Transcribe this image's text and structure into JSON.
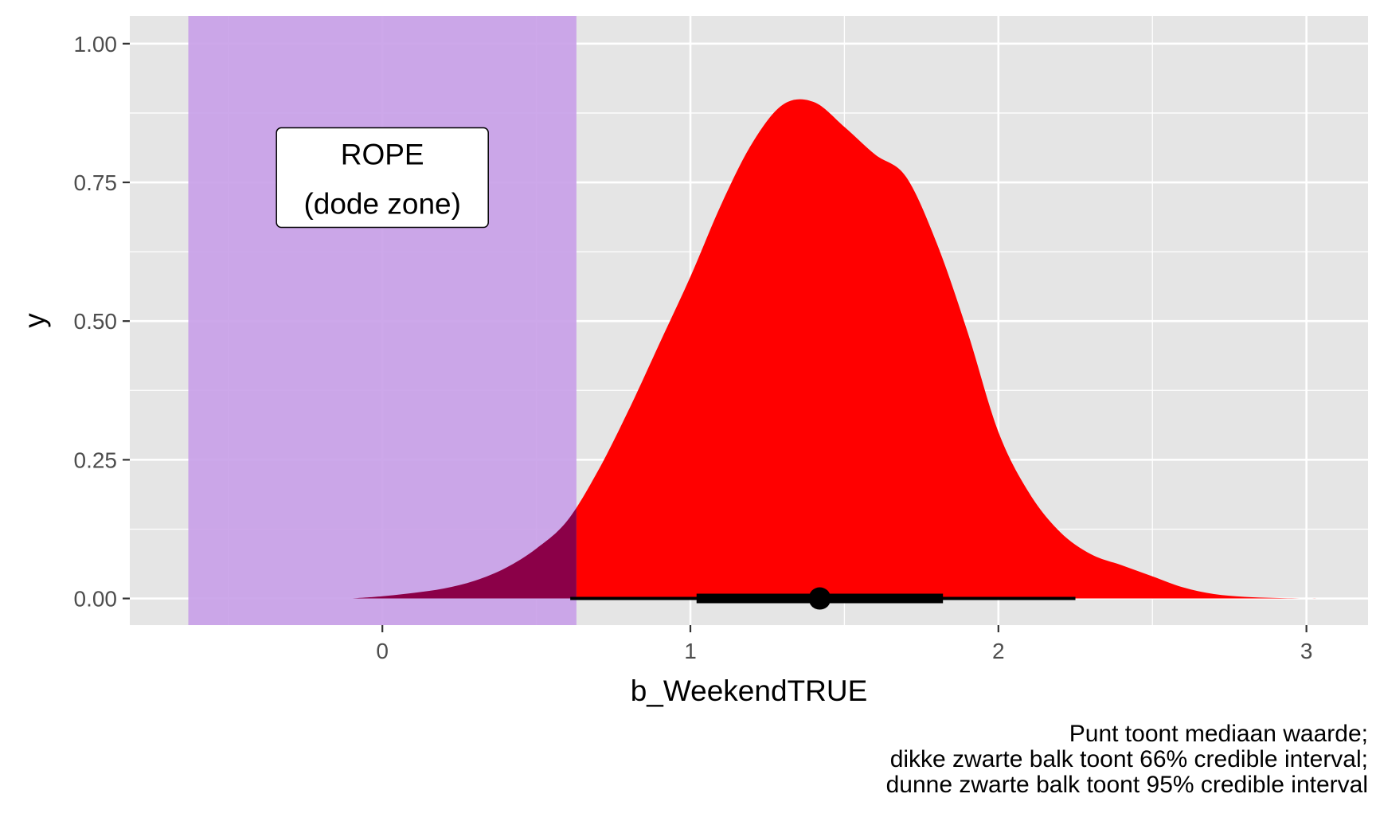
{
  "chart_data": {
    "type": "area",
    "title": "",
    "xlabel": "b_WeekendTRUE",
    "ylabel": "y",
    "xlim": [
      -0.82,
      3.2
    ],
    "ylim": [
      -0.048,
      1.05
    ],
    "x_ticks": [
      0,
      1,
      2,
      3
    ],
    "y_ticks": [
      0.0,
      0.25,
      0.5,
      0.75,
      1.0
    ],
    "y_tick_labels": [
      "0.00",
      "0.25",
      "0.50",
      "0.75",
      "1.00"
    ],
    "grid": true,
    "density": {
      "x": [
        -0.1,
        0.0,
        0.1,
        0.2,
        0.3,
        0.4,
        0.5,
        0.6,
        0.7,
        0.8,
        0.9,
        1.0,
        1.1,
        1.2,
        1.3,
        1.4,
        1.5,
        1.6,
        1.7,
        1.8,
        1.9,
        2.0,
        2.1,
        2.2,
        2.3,
        2.4,
        2.5,
        2.6,
        2.7,
        2.8,
        2.9,
        3.0,
        3.06
      ],
      "y": [
        0.0,
        0.004,
        0.01,
        0.018,
        0.032,
        0.055,
        0.09,
        0.14,
        0.23,
        0.34,
        0.46,
        0.58,
        0.71,
        0.82,
        0.89,
        0.895,
        0.85,
        0.8,
        0.76,
        0.64,
        0.48,
        0.3,
        0.19,
        0.12,
        0.08,
        0.06,
        0.04,
        0.02,
        0.008,
        0.003,
        0.001,
        0.0,
        0.0
      ]
    },
    "rope": {
      "xmin": -0.63,
      "xmax": 0.63,
      "label_line1": "ROPE",
      "label_line2": "(dode zone)",
      "label_x": 0.0,
      "label_y": 0.755
    },
    "point_interval": {
      "median": 1.42,
      "interval_66": [
        1.02,
        1.82
      ],
      "interval_95": [
        0.61,
        2.25
      ]
    },
    "colors": {
      "panel": "#E5E5E5",
      "grid": "#FFFFFF",
      "density_fill": "#FF0000",
      "density_in_rope": "#8B0048",
      "rope_fill": "#C9A1E8",
      "interval": "#000000"
    }
  },
  "caption": {
    "line1": "Punt toont mediaan waarde;",
    "line2": "dikke zwarte balk toont 66% credible interval;",
    "line3": "dunne zwarte balk toont 95% credible interval"
  }
}
